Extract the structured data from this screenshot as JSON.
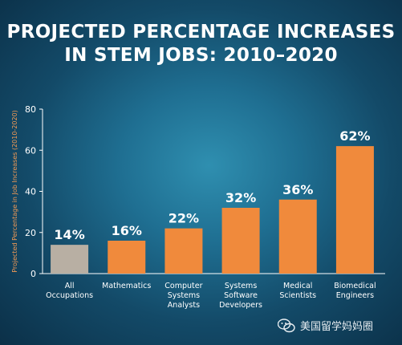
{
  "chart_data": {
    "type": "bar",
    "title": [
      "PROJECTED PERCENTAGE INCREASES",
      "IN STEM JOBS: 2010–2020"
    ],
    "ylabel": "Projected Percentage in Job Increases (2010-2020)",
    "ylim": [
      0,
      80
    ],
    "yticks": [
      0,
      20,
      40,
      60,
      80
    ],
    "grid": false,
    "categories": [
      [
        "All",
        "Occupations"
      ],
      [
        "Mathematics"
      ],
      [
        "Computer",
        "Systems",
        "Analysts"
      ],
      [
        "Systems",
        "Software",
        "Developers"
      ],
      [
        "Medical",
        "Scientists"
      ],
      [
        "Biomedical",
        "Engineers"
      ]
    ],
    "values": [
      14,
      16,
      22,
      32,
      36,
      62
    ],
    "data_labels": [
      "14%",
      "16%",
      "22%",
      "32%",
      "36%",
      "62%"
    ],
    "bar_colors": [
      "#b8afa3",
      "#f08a3c",
      "#f08a3c",
      "#f08a3c",
      "#f08a3c",
      "#f08a3c"
    ]
  },
  "watermark": {
    "text": "美国留学妈妈圈",
    "icon": "wechat-icon"
  }
}
